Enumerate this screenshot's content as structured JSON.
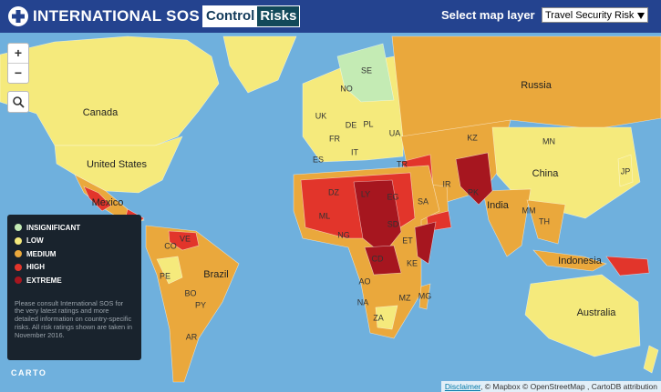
{
  "header": {
    "brand": "INTERNATIONAL SOS",
    "partner_prefix": "Control",
    "partner_suffix": "Risks",
    "layer_label": "Select map layer",
    "layer_value": "Travel Security Risk"
  },
  "controls": {
    "zoom_in": "+",
    "zoom_out": "−"
  },
  "legend": {
    "items": [
      {
        "label": "INSIGNIFICANT",
        "color": "#c4ebb4"
      },
      {
        "label": "LOW",
        "color": "#f5ea7c"
      },
      {
        "label": "MEDIUM",
        "color": "#eaa83c"
      },
      {
        "label": "HIGH",
        "color": "#e2352b"
      },
      {
        "label": "EXTREME",
        "color": "#a6161f"
      }
    ],
    "note": "Please consult International SOS for the very latest ratings and more detailed information on country-specific risks. All risk ratings shown are taken in November 2016."
  },
  "map_labels": [
    "Canada",
    "United States",
    "Mexico",
    "Russia",
    "China",
    "India",
    "Brazil",
    "Australia",
    "Indonesia",
    "SE",
    "NO",
    "UK",
    "DE",
    "PL",
    "UA",
    "FR",
    "IT",
    "ES",
    "TR",
    "KZ",
    "MN",
    "JP",
    "IR",
    "SA",
    "EG",
    "LY",
    "DZ",
    "ML",
    "NG",
    "SD",
    "ET",
    "KE",
    "CD",
    "AO",
    "NA",
    "ZA",
    "MZ",
    "MG",
    "PK",
    "MM",
    "TH",
    "CO",
    "VE",
    "PE",
    "BO",
    "PY",
    "AR"
  ],
  "logo": "CARTO",
  "attribution": {
    "link": "Disclaimer",
    "text": ", © Mapbox © OpenStreetMap , CartoDB attribution"
  }
}
